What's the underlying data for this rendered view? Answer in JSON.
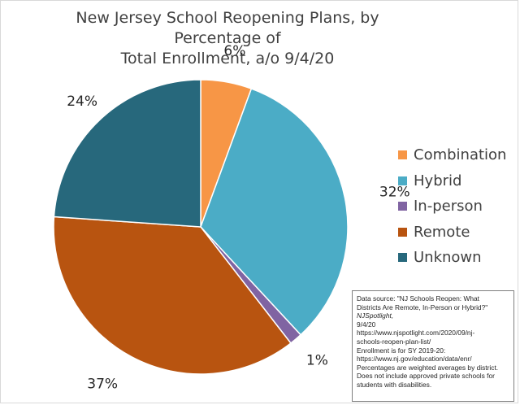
{
  "chart_data": {
    "type": "pie",
    "title_lines": [
      "New Jersey School Reopening Plans, by Percentage of",
      "Total Enrollment, a/o 9/4/20"
    ],
    "categories": [
      "Combination",
      "Hybrid",
      "In-person",
      "Remote",
      "Unknown"
    ],
    "values": [
      5.6,
      32.5,
      1.4,
      36.6,
      23.9
    ],
    "labels": [
      "6%",
      "32%",
      "1%",
      "37%",
      "24%"
    ],
    "colors": [
      "#f79646",
      "#4bacc6",
      "#8064a2",
      "#b85410",
      "#27687c"
    ],
    "legend_position": "right"
  },
  "source_note": [
    "Data source: \"NJ Schools Reopen: What",
    "Districts Are Remote, In-Person or Hybrid?\"",
    "NJSpotlight,",
    " 9/4/20",
    "https://www.njspotlight.com/2020/09/nj-",
    "schools-reopen-plan-list/",
    "Enrollment is for SY 2019-20:",
    "https://www.nj.gov/education/data/enr/",
    "Percentages are weighted averages by district.",
    "Does not include approved private schools for",
    "students with disabilities."
  ]
}
